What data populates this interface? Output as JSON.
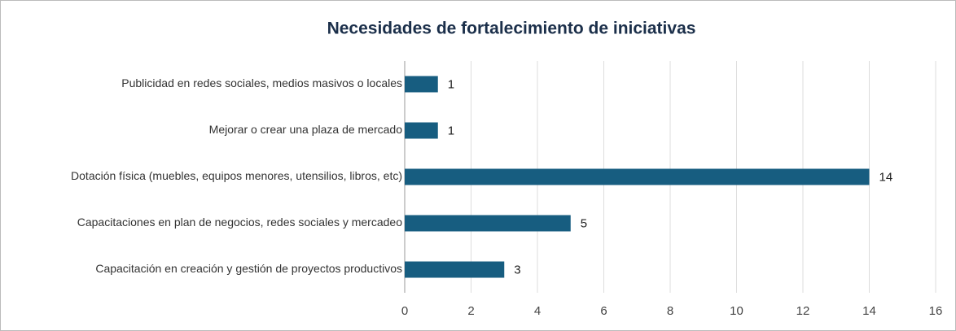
{
  "chart_data": {
    "type": "bar",
    "orientation": "horizontal",
    "title": "Necesidades de fortalecimiento de iniciativas",
    "categories": [
      "Publicidad en redes sociales, medios masivos o locales",
      "Mejorar o crear una plaza de mercado",
      "Dotación física (muebles, equipos menores, utensilios, libros, etc)",
      "Capacitaciones en plan de negocios, redes sociales y mercadeo",
      "Capacitación en creación y gestión de proyectos productivos"
    ],
    "values": [
      1,
      1,
      14,
      5,
      3
    ],
    "color": "#175d80",
    "xlim": [
      0,
      16
    ],
    "xticks": [
      0,
      2,
      4,
      6,
      8,
      10,
      12,
      14,
      16
    ],
    "grid": true
  }
}
